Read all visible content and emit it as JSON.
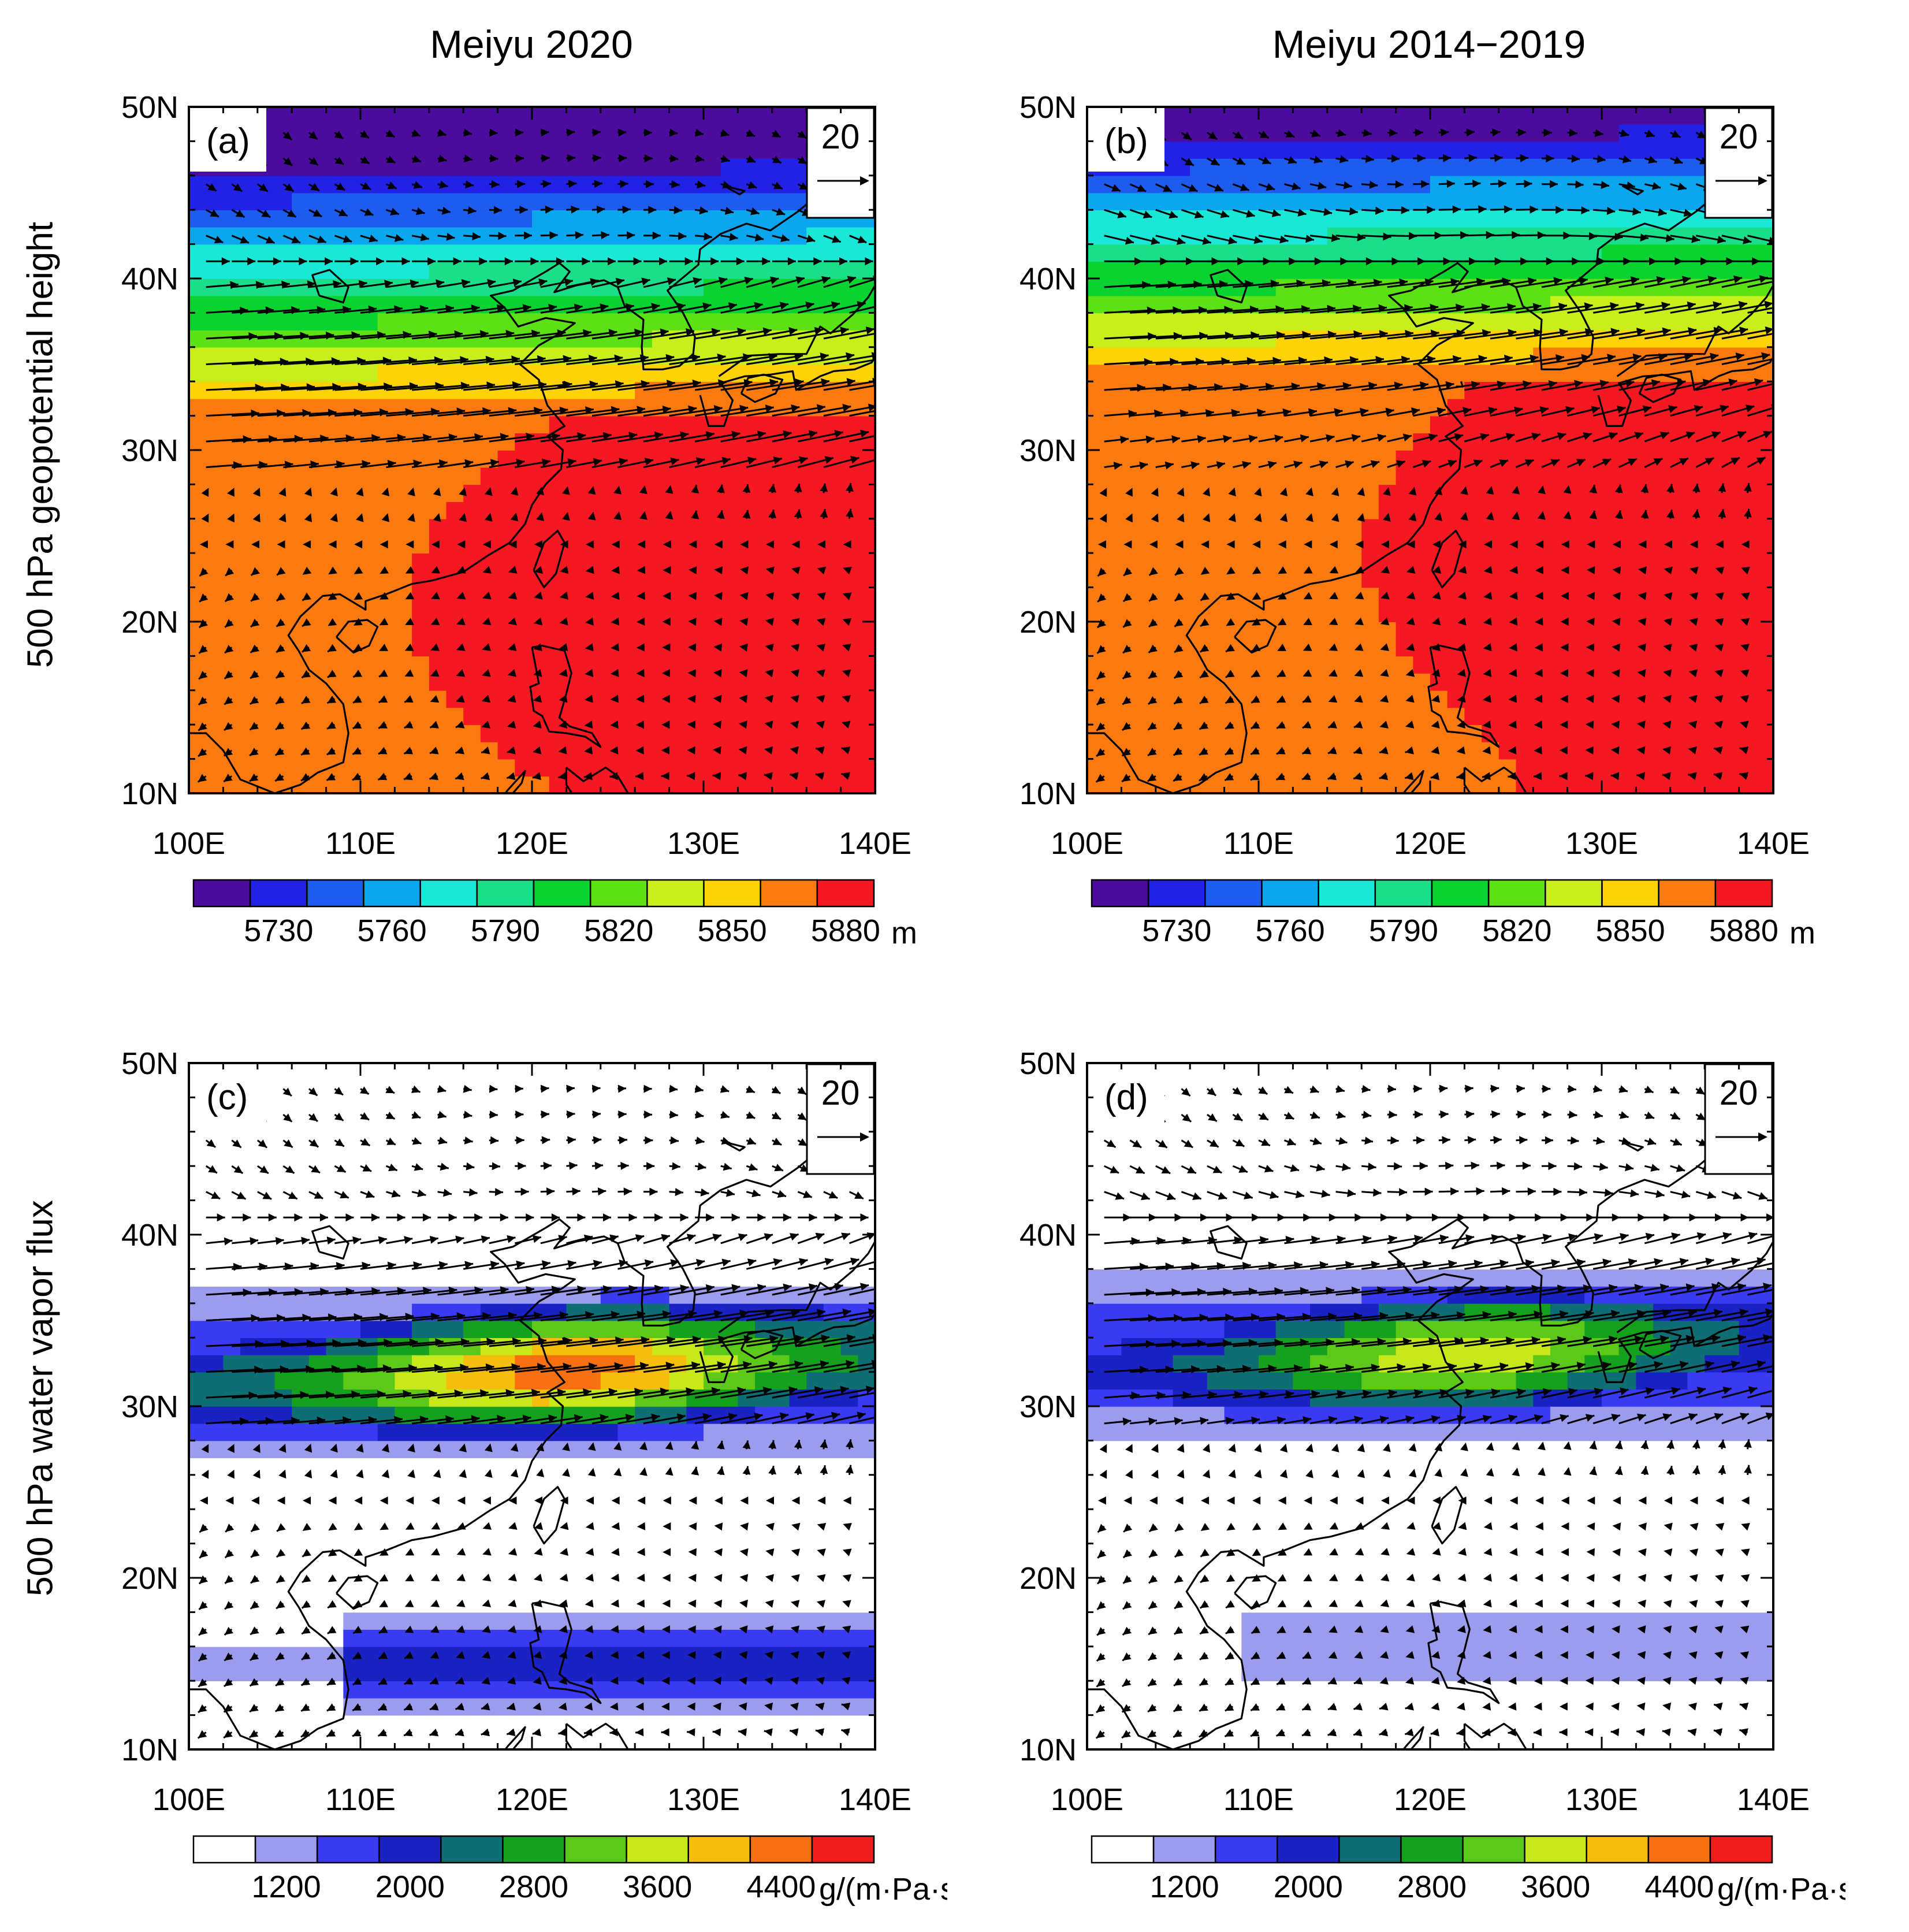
{
  "column_titles": [
    "Meiyu 2020",
    "Meiyu 2014−2019"
  ],
  "row_titles": [
    "500 hPa geopotential height",
    "500 hPa water vapor flux"
  ],
  "chart_data": [
    {
      "type": "heatmap",
      "panel_label": "(a)",
      "title": "Meiyu 2020",
      "ylabel": "500 hPa geopotential height",
      "field": "height",
      "x_ticks": [
        "100E",
        "110E",
        "120E",
        "130E",
        "140E"
      ],
      "y_ticks": [
        "50N",
        "40N",
        "30N",
        "20N",
        "10N"
      ],
      "xlim": [
        100,
        140
      ],
      "ylim": [
        10,
        50
      ],
      "ref_vector": "20",
      "colorbar": {
        "colors": [
          "#4B0C9E",
          "#2222E6",
          "#1E5CF0",
          "#0CA6EE",
          "#1BE7D6",
          "#1BDE8A",
          "#0AD231",
          "#5CE016",
          "#C8EE1C",
          "#FDD207",
          "#FB7A10",
          "#F51822"
        ],
        "labels": [
          "5730",
          "5760",
          "5790",
          "5820",
          "5850",
          "5880"
        ],
        "unit": "m"
      },
      "flow": {
        "jet_lat": 34,
        "jet_speed": 18,
        "high_lat": 21,
        "high_lon": 131,
        "level_lat": 30,
        "level_amp": 3.5
      }
    },
    {
      "type": "heatmap",
      "panel_label": "(b)",
      "title": "Meiyu 2014−2019",
      "ylabel": "",
      "field": "height",
      "x_ticks": [
        "100E",
        "110E",
        "120E",
        "130E",
        "140E"
      ],
      "y_ticks": [
        "50N",
        "40N",
        "30N",
        "20N",
        "10N"
      ],
      "xlim": [
        100,
        140
      ],
      "ylim": [
        10,
        50
      ],
      "ref_vector": "20",
      "colorbar": {
        "colors": [
          "#4B0C9E",
          "#2222E6",
          "#1E5CF0",
          "#0CA6EE",
          "#1BE7D6",
          "#1BDE8A",
          "#0AD231",
          "#5CE016",
          "#C8EE1C",
          "#FDD207",
          "#FB7A10",
          "#F51822"
        ],
        "labels": [
          "5730",
          "5760",
          "5790",
          "5820",
          "5850",
          "5880"
        ],
        "unit": "m"
      },
      "flow": {
        "jet_lat": 37,
        "jet_speed": 16,
        "high_lat": 24,
        "high_lon": 136,
        "level_lat": 32,
        "level_amp": 2.8
      }
    },
    {
      "type": "heatmap",
      "panel_label": "(c)",
      "title": "",
      "ylabel": "500 hPa water vapor flux",
      "field": "flux",
      "x_ticks": [
        "100E",
        "110E",
        "120E",
        "130E",
        "140E"
      ],
      "y_ticks": [
        "50N",
        "40N",
        "30N",
        "20N",
        "10N"
      ],
      "xlim": [
        100,
        140
      ],
      "ylim": [
        10,
        50
      ],
      "ref_vector": "20",
      "colorbar": {
        "colors": [
          "#FFFFFF",
          "#9C9CEE",
          "#3A3AF2",
          "#1A22C4",
          "#0E6E74",
          "#15A01E",
          "#5CC81A",
          "#C8E81C",
          "#F6BE0C",
          "#F67012",
          "#F01C1E"
        ],
        "labels": [
          "1200",
          "2000",
          "2800",
          "3600",
          "4400"
        ],
        "unit": "g/(m·Pa·s)"
      },
      "flow": {
        "jet_lat": 33,
        "jet_speed": 18,
        "band_lat": 32,
        "band_peak": 4600,
        "south_lat": 15,
        "south_peak": 2100
      }
    },
    {
      "type": "heatmap",
      "panel_label": "(d)",
      "title": "",
      "ylabel": "",
      "field": "flux",
      "x_ticks": [
        "100E",
        "110E",
        "120E",
        "130E",
        "140E"
      ],
      "y_ticks": [
        "50N",
        "40N",
        "30N",
        "20N",
        "10N"
      ],
      "xlim": [
        100,
        140
      ],
      "ylim": [
        10,
        50
      ],
      "ref_vector": "20",
      "colorbar": {
        "colors": [
          "#FFFFFF",
          "#9C9CEE",
          "#3A3AF2",
          "#1A22C4",
          "#0E6E74",
          "#15A01E",
          "#5CC81A",
          "#C8E81C",
          "#F6BE0C",
          "#F67012",
          "#F01C1E"
        ],
        "labels": [
          "1200",
          "2000",
          "2800",
          "3600",
          "4400"
        ],
        "unit": "g/(m·Pa·s)"
      },
      "flow": {
        "jet_lat": 35,
        "jet_speed": 16,
        "band_lat": 33,
        "band_peak": 3900,
        "south_lat": 16,
        "south_peak": 1500
      }
    }
  ]
}
